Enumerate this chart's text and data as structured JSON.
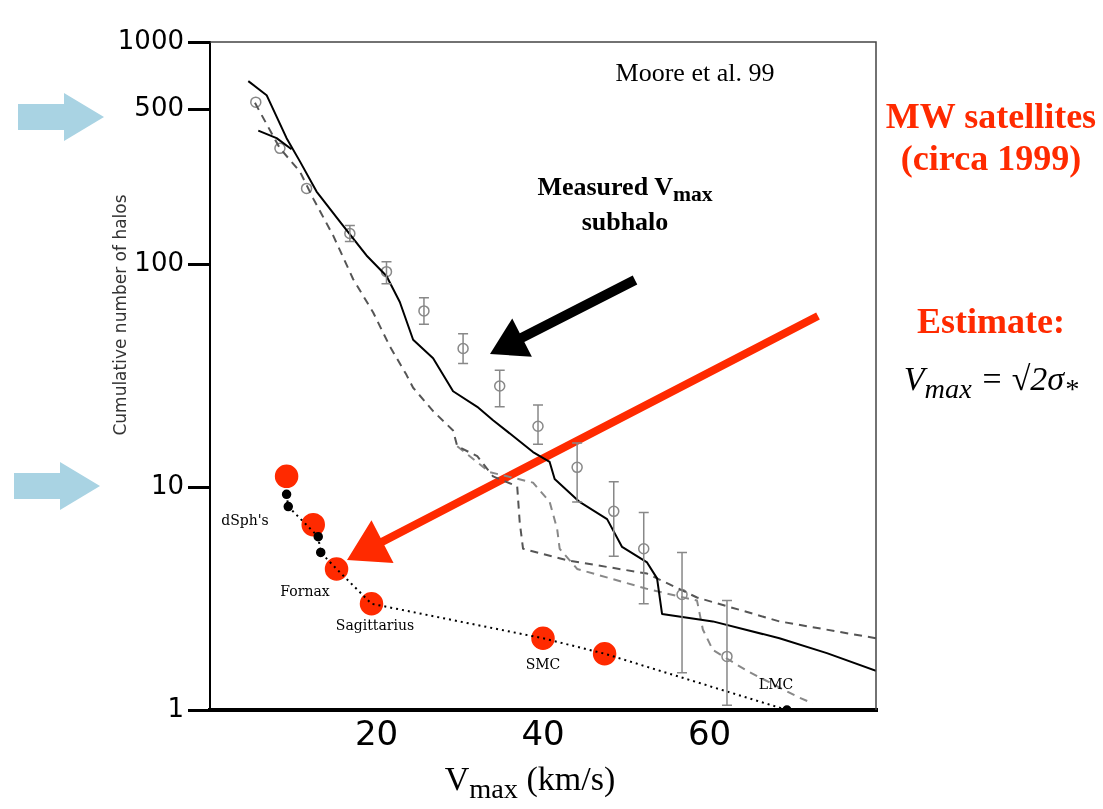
{
  "chart_data": {
    "type": "line",
    "xlabel": "V$_{max}$ (km/s)",
    "ylabel": "Cumulative number of halos",
    "xlim": [
      0,
      80
    ],
    "ylim": [
      1,
      1000
    ],
    "xticks": [
      20,
      40,
      60
    ],
    "yticks": [
      1,
      10,
      100,
      500,
      1000
    ],
    "log": "y",
    "legend": false,
    "annotations": [
      "Moore et al. 99",
      "Measured V$_{max}$ subhalo",
      "MW satellites (circa 1999)",
      "Estimate:",
      "V$_{max}$ = √2σ$_{*}$",
      "dSph's",
      "Fornax",
      "Sagittarius",
      "SMC",
      "LMC"
    ],
    "series": [
      {
        "type": "line",
        "line_style": "solid",
        "color": "#000000",
        "x": [
          4.6,
          6.8,
          9.2,
          10.8,
          12.8,
          15.6,
          18.8,
          21.2,
          22.8,
          24.4,
          26.8,
          29.2,
          32.1,
          34.0,
          36.4,
          38.8,
          40.8,
          41.4,
          44.4,
          47.7,
          49.5,
          52.5,
          53.7,
          54.3,
          60.4,
          68.4,
          74.1,
          80
        ],
        "values": [
          667,
          577,
          370,
          291,
          213,
          156,
          110,
          89,
          68,
          46,
          38,
          27,
          23,
          20,
          17,
          14.4,
          13.0,
          10.9,
          8.6,
          7.2,
          5.4,
          4.6,
          3.9,
          2.7,
          2.5,
          2.1,
          1.8,
          1.5
        ]
      },
      {
        "type": "line",
        "line_style": "solid",
        "color": "#000000",
        "x": [
          5.8,
          8.0,
          9.8
        ],
        "values": [
          400,
          370,
          330
        ]
      },
      {
        "type": "line",
        "line_style": "dashed",
        "color": "#555555",
        "x": [
          5.4,
          8.4,
          10.8,
          12.4,
          14.8,
          17.2,
          19.6,
          21.6,
          23.6,
          24.4,
          26.8,
          29.2,
          29.7,
          32.1,
          34.0,
          36.9,
          37.2,
          37.6,
          42.9,
          52.5,
          58.5,
          68.4,
          80
        ],
        "values": [
          533,
          333,
          262,
          198,
          135,
          86,
          61,
          43,
          32,
          28,
          22,
          18,
          15.3,
          13.8,
          11.2,
          10.1,
          7.0,
          5.3,
          4.7,
          4.1,
          3.2,
          2.5,
          2.1
        ]
      },
      {
        "type": "line",
        "line_style": "dashed",
        "color": "#888888",
        "x": [
          29.7,
          33.6,
          38.8,
          40.8,
          41.7,
          42.0,
          44.1,
          52.5,
          58.5,
          59.2,
          60.4,
          64.5,
          70.5,
          72.4
        ],
        "values": [
          15.3,
          11.7,
          10.5,
          8.6,
          6.5,
          5.3,
          4.3,
          3.5,
          3.1,
          2.3,
          1.86,
          1.5,
          1.15,
          1.07
        ]
      },
      {
        "type": "line",
        "line_style": "dotted",
        "color": "#000000",
        "x": [
          9.2,
          9.4,
          13.0,
          13.3,
          15.2,
          19.4,
          40.0,
          47.4,
          69.3
        ],
        "values": [
          9.3,
          8.2,
          6.0,
          5.1,
          4.3,
          3.0,
          2.1,
          1.79,
          1.0
        ]
      },
      {
        "type": "scatter",
        "marker": "circle",
        "color": "#000000",
        "x": [
          9.2,
          9.4,
          13.0,
          13.3,
          69.3
        ],
        "values": [
          9.3,
          8.2,
          6.0,
          5.1,
          1.0
        ]
      },
      {
        "type": "scatter",
        "marker": "circle",
        "color": "#888888",
        "x": [
          5.5,
          8.4,
          11.6,
          16.8,
          21.2,
          25.7,
          30.4,
          34.8,
          39.4,
          44.1,
          48.5,
          52.1,
          56.7,
          62.1
        ],
        "values": [
          537,
          333,
          220,
          138,
          93,
          62,
          42,
          28.5,
          18.8,
          12.3,
          7.8,
          5.3,
          3.3,
          1.74
        ],
        "errors": [
          null,
          null,
          null,
          [
            127,
            150
          ],
          [
            82,
            103
          ],
          [
            54,
            71
          ],
          [
            36,
            49
          ],
          [
            23,
            33.6
          ],
          [
            15.6,
            23.4
          ],
          [
            8.6,
            15.8
          ],
          [
            4.9,
            10.6
          ],
          [
            3.0,
            7.7
          ],
          [
            1.47,
            5.1
          ],
          [
            1.05,
            3.1
          ]
        ]
      },
      {
        "type": "scatter",
        "marker": "circle",
        "color": "#ff2a00",
        "x": [
          9.2,
          12.4,
          15.2,
          19.4,
          40.0,
          47.4
        ],
        "values": [
          11.2,
          6.8,
          4.3,
          3.0,
          2.1,
          1.79
        ]
      }
    ]
  }
}
